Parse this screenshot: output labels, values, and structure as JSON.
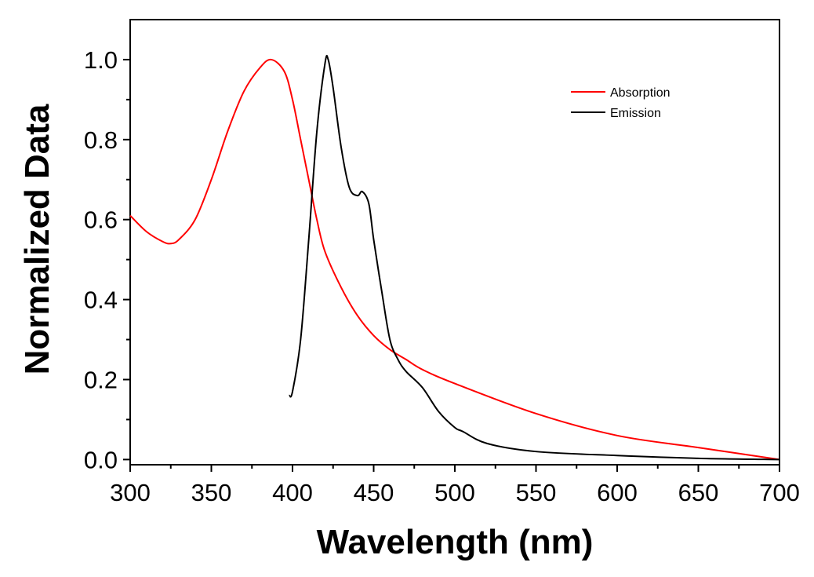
{
  "chart_data": {
    "type": "line",
    "title": "",
    "xlabel": "Wavelength (nm)",
    "ylabel": "Normalized Data",
    "xlim": [
      300,
      700
    ],
    "ylim": [
      -0.013,
      1.1
    ],
    "xticks": [
      300,
      350,
      400,
      450,
      500,
      550,
      600,
      650,
      700
    ],
    "xtick_labels": [
      "300",
      "350",
      "400",
      "450",
      "500",
      "550",
      "600",
      "650",
      "700"
    ],
    "yticks": [
      0.0,
      0.2,
      0.4,
      0.6,
      0.8,
      1.0
    ],
    "ytick_labels": [
      "0.0",
      "0.2",
      "0.4",
      "0.6",
      "0.8",
      "1.0"
    ],
    "grid": false,
    "legend_placement": "top-right",
    "series": [
      {
        "name": "Absorption",
        "color": "#ff0000",
        "x": [
          300,
          310,
          320,
          325,
          330,
          340,
          350,
          360,
          370,
          380,
          387,
          395,
          400,
          405,
          410,
          415,
          420,
          430,
          440,
          450,
          460,
          470,
          480,
          500,
          550,
          600,
          650,
          700
        ],
        "y": [
          0.61,
          0.57,
          0.545,
          0.54,
          0.55,
          0.6,
          0.7,
          0.82,
          0.92,
          0.98,
          1.0,
          0.97,
          0.9,
          0.8,
          0.7,
          0.6,
          0.52,
          0.43,
          0.36,
          0.31,
          0.275,
          0.25,
          0.225,
          0.19,
          0.115,
          0.06,
          0.03,
          0.0
        ]
      },
      {
        "name": "Emission",
        "color": "#000000",
        "x": [
          398,
          400,
          405,
          410,
          415,
          420,
          422,
          425,
          430,
          435,
          440,
          443,
          447,
          450,
          455,
          460,
          465,
          470,
          480,
          490,
          500,
          505,
          520,
          550,
          600,
          650,
          700
        ],
        "y": [
          0.16,
          0.17,
          0.3,
          0.55,
          0.82,
          0.99,
          1.0,
          0.93,
          0.78,
          0.68,
          0.66,
          0.67,
          0.64,
          0.55,
          0.42,
          0.3,
          0.25,
          0.22,
          0.18,
          0.12,
          0.08,
          0.07,
          0.04,
          0.02,
          0.01,
          0.003,
          0.0
        ]
      }
    ]
  }
}
